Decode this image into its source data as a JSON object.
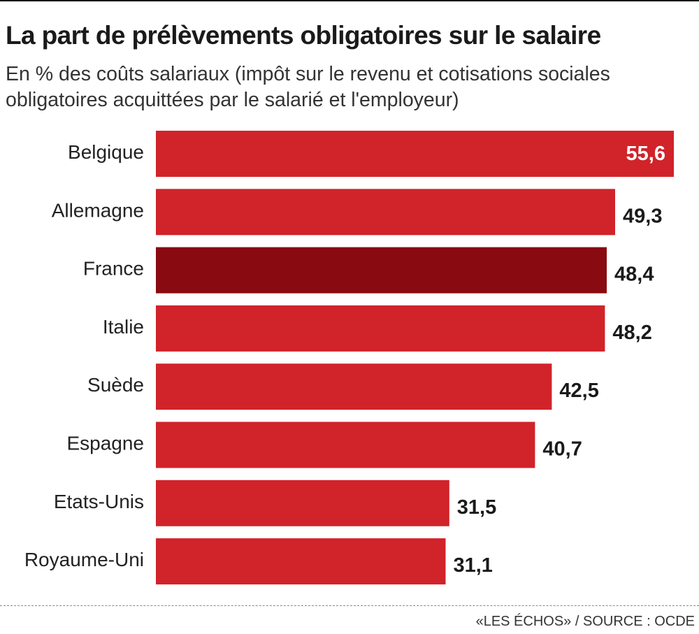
{
  "header": {
    "title": "La part de prélèvements obligatoires sur le salaire",
    "subtitle": "En % des coûts salariaux (impôt sur le revenu et cotisations sociales obligatoires acquittées par le salarié et l'employeur)"
  },
  "footer": {
    "source": "«LES ÉCHOS»  / SOURCE : OCDE"
  },
  "colors": {
    "bar": "#d1232a",
    "highlight_bar": "#8a0a11",
    "label_dark": "#1a1a1a",
    "label_inside": "#ffffff"
  },
  "chart_data": {
    "type": "bar",
    "orientation": "horizontal",
    "categories": [
      "Belgique",
      "Allemagne",
      "France",
      "Italie",
      "Suède",
      "Espagne",
      "Etats-Unis",
      "Royaume-Uni"
    ],
    "values": [
      55.6,
      49.3,
      48.4,
      48.2,
      42.5,
      40.7,
      31.5,
      31.1
    ],
    "value_labels": [
      "55,6",
      "49,3",
      "48,4",
      "48,2",
      "42,5",
      "40,7",
      "31,5",
      "31,1"
    ],
    "highlight": "France",
    "unit": "%",
    "xlim": [
      0,
      55.6
    ],
    "grid": false,
    "legend": "none"
  }
}
